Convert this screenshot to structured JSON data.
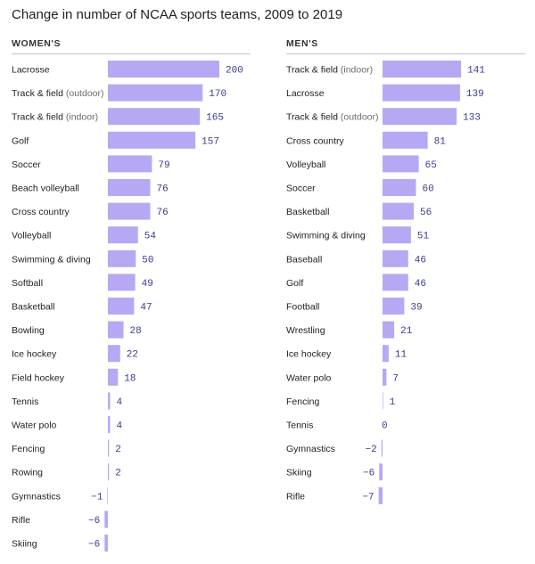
{
  "title": "Change in number of NCAA sports teams, 2009 to 2019",
  "chart_data": [
    {
      "type": "bar",
      "orientation": "horizontal",
      "heading": "WOMEN'S",
      "categories": [
        {
          "label": "Lacrosse",
          "suffix": ""
        },
        {
          "label": "Track & field",
          "suffix": "(outdoor)"
        },
        {
          "label": "Track & field",
          "suffix": "(indoor)"
        },
        {
          "label": "Golf",
          "suffix": ""
        },
        {
          "label": "Soccer",
          "suffix": ""
        },
        {
          "label": "Beach volleyball",
          "suffix": ""
        },
        {
          "label": "Cross country",
          "suffix": ""
        },
        {
          "label": "Volleyball",
          "suffix": ""
        },
        {
          "label": "Swimming & diving",
          "suffix": ""
        },
        {
          "label": "Softball",
          "suffix": ""
        },
        {
          "label": "Basketball",
          "suffix": ""
        },
        {
          "label": "Bowling",
          "suffix": ""
        },
        {
          "label": "Ice hockey",
          "suffix": ""
        },
        {
          "label": "Field hockey",
          "suffix": ""
        },
        {
          "label": "Tennis",
          "suffix": ""
        },
        {
          "label": "Water polo",
          "suffix": ""
        },
        {
          "label": "Fencing",
          "suffix": ""
        },
        {
          "label": "Rowing",
          "suffix": ""
        },
        {
          "label": "Gymnastics",
          "suffix": ""
        },
        {
          "label": "Rifle",
          "suffix": ""
        },
        {
          "label": "Skiing",
          "suffix": ""
        }
      ],
      "values": [
        200,
        170,
        165,
        157,
        79,
        76,
        76,
        54,
        50,
        49,
        47,
        28,
        22,
        18,
        4,
        4,
        2,
        2,
        -1,
        -6,
        -6
      ],
      "value_labels": [
        "200",
        "170",
        "165",
        "157",
        "79",
        "76",
        "76",
        "54",
        "50",
        "49",
        "47",
        "28",
        "22",
        "18",
        "4",
        "4",
        "2",
        "2",
        "−1",
        "−6",
        "−6"
      ]
    },
    {
      "type": "bar",
      "orientation": "horizontal",
      "heading": "MEN'S",
      "categories": [
        {
          "label": "Track & field",
          "suffix": "(indoor)"
        },
        {
          "label": "Lacrosse",
          "suffix": ""
        },
        {
          "label": "Track & field",
          "suffix": "(outdoor)"
        },
        {
          "label": "Cross country",
          "suffix": ""
        },
        {
          "label": "Volleyball",
          "suffix": ""
        },
        {
          "label": "Soccer",
          "suffix": ""
        },
        {
          "label": "Basketball",
          "suffix": ""
        },
        {
          "label": "Swimming & diving",
          "suffix": ""
        },
        {
          "label": "Baseball",
          "suffix": ""
        },
        {
          "label": "Golf",
          "suffix": ""
        },
        {
          "label": "Football",
          "suffix": ""
        },
        {
          "label": "Wrestling",
          "suffix": ""
        },
        {
          "label": "Ice hockey",
          "suffix": ""
        },
        {
          "label": "Water polo",
          "suffix": ""
        },
        {
          "label": "Fencing",
          "suffix": ""
        },
        {
          "label": "Tennis",
          "suffix": ""
        },
        {
          "label": "Gymnastics",
          "suffix": ""
        },
        {
          "label": "Skiing",
          "suffix": ""
        },
        {
          "label": "Rifle",
          "suffix": ""
        }
      ],
      "values": [
        141,
        139,
        133,
        81,
        65,
        60,
        56,
        51,
        46,
        46,
        39,
        21,
        11,
        7,
        1,
        0,
        -2,
        -6,
        -7
      ],
      "value_labels": [
        "141",
        "139",
        "133",
        "81",
        "65",
        "60",
        "56",
        "51",
        "46",
        "46",
        "39",
        "21",
        "11",
        "7",
        "1",
        "0",
        "−2",
        "−6",
        "−7"
      ]
    }
  ],
  "colors": {
    "bar": "#b7a8f3",
    "value_text": "#3b3b8c",
    "label_text": "#222222",
    "suffix_text": "#6b6b6b"
  }
}
